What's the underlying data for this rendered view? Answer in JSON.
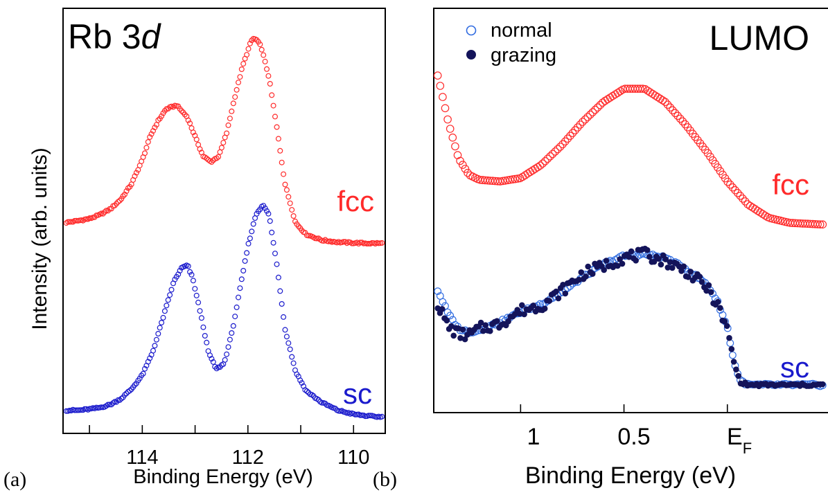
{
  "chart_data": [
    {
      "panel_label": "(a)",
      "type": "scatter",
      "title": "Rb 3d",
      "title_main": "Rb 3",
      "title_italic": "d",
      "xlabel": "Binding Energy (eV)",
      "ylabel": "Intensity (arb. units)",
      "x_reversed": true,
      "xlim": [
        115.5,
        109.4
      ],
      "ylim": [
        0,
        1
      ],
      "xticks": [
        115,
        114,
        113,
        112,
        111,
        110
      ],
      "xtick_labels": [
        "114",
        "112",
        "110"
      ],
      "xtick_label_values": [
        114,
        112,
        110
      ],
      "grid": false,
      "series": [
        {
          "name": "fcc",
          "color": "#ff2a2a",
          "marker": "open-circle",
          "peaks": [
            {
              "x": 113.35,
              "y": 0.8,
              "w": 0.23
            },
            {
              "x": 111.9,
              "y": 0.97,
              "w": 0.25
            }
          ],
          "points": [
            [
              115.45,
              0.5
            ],
            [
              115.2,
              0.505
            ],
            [
              115,
              0.51
            ],
            [
              114.8,
              0.52
            ],
            [
              114.6,
              0.535
            ],
            [
              114.4,
              0.56
            ],
            [
              114.2,
              0.6
            ],
            [
              114.0,
              0.66
            ],
            [
              113.85,
              0.72
            ],
            [
              113.7,
              0.76
            ],
            [
              113.55,
              0.79
            ],
            [
              113.35,
              0.8
            ],
            [
              113.15,
              0.77
            ],
            [
              113.0,
              0.72
            ],
            [
              112.85,
              0.67
            ],
            [
              112.7,
              0.655
            ],
            [
              112.55,
              0.67
            ],
            [
              112.4,
              0.73
            ],
            [
              112.25,
              0.82
            ],
            [
              112.1,
              0.9
            ],
            [
              111.95,
              0.96
            ],
            [
              111.85,
              0.97
            ],
            [
              111.75,
              0.95
            ],
            [
              111.6,
              0.87
            ],
            [
              111.45,
              0.74
            ],
            [
              111.3,
              0.6
            ],
            [
              111.1,
              0.5
            ],
            [
              110.9,
              0.47
            ],
            [
              110.6,
              0.455
            ],
            [
              110.3,
              0.45
            ],
            [
              110.0,
              0.448
            ],
            [
              109.7,
              0.447
            ],
            [
              109.45,
              0.447
            ]
          ]
        },
        {
          "name": "sc",
          "color": "#1a1acc",
          "marker": "open-circle",
          "peaks": [
            {
              "x": 113.15,
              "y": 0.39,
              "w": 0.21
            },
            {
              "x": 111.72,
              "y": 0.545,
              "w": 0.22
            }
          ],
          "points": [
            [
              115.45,
              0.02
            ],
            [
              115.2,
              0.02
            ],
            [
              115,
              0.023
            ],
            [
              114.8,
              0.027
            ],
            [
              114.6,
              0.035
            ],
            [
              114.4,
              0.05
            ],
            [
              114.2,
              0.075
            ],
            [
              114.0,
              0.11
            ],
            [
              113.8,
              0.17
            ],
            [
              113.6,
              0.26
            ],
            [
              113.4,
              0.35
            ],
            [
              113.25,
              0.385
            ],
            [
              113.15,
              0.39
            ],
            [
              113.05,
              0.36
            ],
            [
              112.9,
              0.27
            ],
            [
              112.75,
              0.17
            ],
            [
              112.6,
              0.125
            ],
            [
              112.45,
              0.14
            ],
            [
              112.3,
              0.22
            ],
            [
              112.15,
              0.33
            ],
            [
              112.0,
              0.44
            ],
            [
              111.85,
              0.52
            ],
            [
              111.72,
              0.545
            ],
            [
              111.6,
              0.52
            ],
            [
              111.45,
              0.39
            ],
            [
              111.3,
              0.23
            ],
            [
              111.1,
              0.12
            ],
            [
              110.9,
              0.07
            ],
            [
              110.6,
              0.04
            ],
            [
              110.3,
              0.02
            ],
            [
              110.0,
              0.01
            ],
            [
              109.7,
              0.005
            ],
            [
              109.45,
              0.003
            ]
          ]
        }
      ],
      "curve_labels": [
        "fcc",
        "sc"
      ]
    },
    {
      "panel_label": "(b)",
      "type": "scatter",
      "title": "LUMO",
      "xlabel": "Binding Energy (eV)",
      "ylabel": "",
      "x_reversed": true,
      "xlim": [
        1.42,
        -0.48
      ],
      "ylim": [
        0,
        1
      ],
      "xticks": [
        1.0,
        0.5,
        0.0
      ],
      "xtick_labels": [
        "1",
        "0.5",
        "E_F"
      ],
      "grid": false,
      "legend": {
        "placement": "top-left",
        "entries": [
          {
            "label": "normal",
            "marker": "open-circle",
            "color": "#2f6be0"
          },
          {
            "label": "grazing",
            "marker": "filled-circle",
            "color": "#14145a"
          }
        ]
      },
      "series": [
        {
          "name": "fcc",
          "color": "#ff2a2a",
          "marker": "open-circle",
          "points": [
            [
              1.4,
              0.96
            ],
            [
              1.35,
              0.82
            ],
            [
              1.3,
              0.71
            ],
            [
              1.25,
              0.66
            ],
            [
              1.2,
              0.645
            ],
            [
              1.1,
              0.64
            ],
            [
              1.0,
              0.65
            ],
            [
              0.9,
              0.69
            ],
            [
              0.8,
              0.75
            ],
            [
              0.7,
              0.82
            ],
            [
              0.6,
              0.88
            ],
            [
              0.5,
              0.92
            ],
            [
              0.4,
              0.92
            ],
            [
              0.3,
              0.88
            ],
            [
              0.2,
              0.81
            ],
            [
              0.1,
              0.73
            ],
            [
              0.0,
              0.64
            ],
            [
              -0.1,
              0.57
            ],
            [
              -0.2,
              0.53
            ],
            [
              -0.3,
              0.515
            ],
            [
              -0.45,
              0.51
            ]
          ]
        },
        {
          "name": "normal",
          "color": "#2f6be0",
          "marker": "open-circle",
          "points": [
            [
              1.4,
              0.31
            ],
            [
              1.35,
              0.24
            ],
            [
              1.3,
              0.195
            ],
            [
              1.25,
              0.185
            ],
            [
              1.2,
              0.19
            ],
            [
              1.1,
              0.215
            ],
            [
              1.0,
              0.245
            ],
            [
              0.9,
              0.27
            ],
            [
              0.8,
              0.305
            ],
            [
              0.7,
              0.35
            ],
            [
              0.6,
              0.39
            ],
            [
              0.5,
              0.415
            ],
            [
              0.4,
              0.42
            ],
            [
              0.3,
              0.41
            ],
            [
              0.2,
              0.375
            ],
            [
              0.1,
              0.33
            ],
            [
              0.05,
              0.28
            ],
            [
              0.0,
              0.2
            ],
            [
              -0.03,
              0.1
            ],
            [
              -0.06,
              0.04
            ],
            [
              -0.1,
              0.025
            ],
            [
              -0.2,
              0.025
            ],
            [
              -0.3,
              0.025
            ],
            [
              -0.45,
              0.025
            ]
          ]
        },
        {
          "name": "grazing",
          "color": "#14145a",
          "marker": "filled-circle",
          "points": [
            [
              1.4,
              0.27
            ],
            [
              1.35,
              0.2
            ],
            [
              1.3,
              0.18
            ],
            [
              1.25,
              0.175
            ],
            [
              1.2,
              0.195
            ],
            [
              1.1,
              0.21
            ],
            [
              1.0,
              0.25
            ],
            [
              0.9,
              0.265
            ],
            [
              0.8,
              0.31
            ],
            [
              0.7,
              0.36
            ],
            [
              0.6,
              0.385
            ],
            [
              0.5,
              0.41
            ],
            [
              0.4,
              0.42
            ],
            [
              0.3,
              0.4
            ],
            [
              0.2,
              0.37
            ],
            [
              0.1,
              0.32
            ],
            [
              0.05,
              0.27
            ],
            [
              0.0,
              0.19
            ],
            [
              -0.03,
              0.1
            ],
            [
              -0.06,
              0.035
            ],
            [
              -0.1,
              0.025
            ],
            [
              -0.2,
              0.025
            ],
            [
              -0.3,
              0.025
            ],
            [
              -0.45,
              0.025
            ]
          ]
        }
      ],
      "curve_labels": [
        "fcc",
        "sc"
      ]
    }
  ]
}
